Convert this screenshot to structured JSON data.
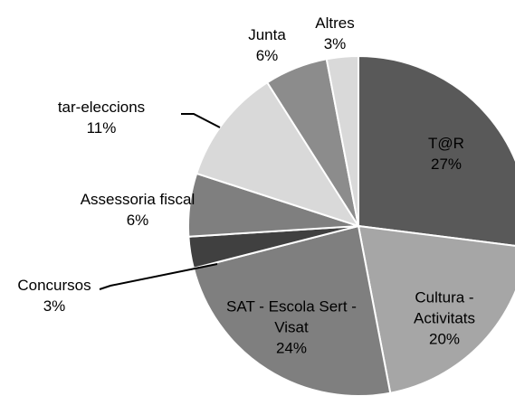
{
  "chart_data": {
    "type": "pie",
    "categories": [
      "T@R",
      "Cultura - Activitats",
      "SAT - Escola Sert -Visat",
      "Concursos",
      "Assessoria fiscal",
      "tar-eleccions",
      "Junta",
      "Altres"
    ],
    "values": [
      27,
      20,
      24,
      3,
      6,
      11,
      6,
      3
    ],
    "value_labels": [
      "27%",
      "20%",
      "24%",
      "3%",
      "6%",
      "11%",
      "6%",
      "3%"
    ],
    "colors": [
      "#595959",
      "#a6a6a6",
      "#7f7f7f",
      "#404040",
      "#7f7f7f",
      "#d9d9d9",
      "#8c8c8c",
      "#d9d9d9"
    ]
  }
}
